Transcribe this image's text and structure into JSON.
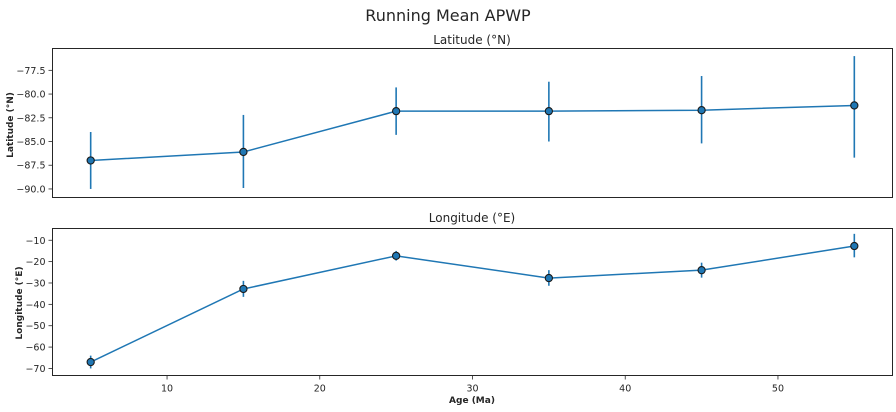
{
  "chart_data": {
    "type": "line",
    "title": "Running Mean APWP",
    "color": "#1f77b4",
    "panels": [
      {
        "title": "Latitude (°N)",
        "ylabel": "Latitude (°N)",
        "xlabel": "",
        "x": [
          5,
          15,
          25,
          35,
          45,
          55
        ],
        "y": [
          -87.0,
          -86.1,
          -81.8,
          -81.8,
          -81.7,
          -81.2
        ],
        "yerr_low": [
          -90.0,
          -89.9,
          -84.3,
          -85.0,
          -85.2,
          -86.7
        ],
        "yerr_high": [
          -84.0,
          -82.2,
          -79.3,
          -78.7,
          -78.1,
          -76.0
        ],
        "ylim": [
          -90.9,
          -75.2
        ],
        "yticks": [
          -90.0,
          -87.5,
          -85.0,
          -82.5,
          -80.0,
          -77.5
        ],
        "ytick_labels": [
          "−90.0",
          "−87.5",
          "−85.0",
          "−82.5",
          "−80.0",
          "−77.5"
        ],
        "xticks": [],
        "xtick_labels": []
      },
      {
        "title": "Longitude (°E)",
        "ylabel": "Longitude (°E)",
        "xlabel": "Age (Ma)",
        "x": [
          5,
          15,
          25,
          35,
          45,
          55
        ],
        "y": [
          -67.0,
          -32.8,
          -17.3,
          -27.7,
          -24.0,
          -12.7
        ],
        "yerr_low": [
          -70.0,
          -36.5,
          -19.5,
          -31.3,
          -27.5,
          -18.0
        ],
        "yerr_high": [
          -64.0,
          -29.0,
          -15.0,
          -24.0,
          -20.5,
          -7.0
        ],
        "ylim": [
          -73.3,
          -4.5
        ],
        "yticks": [
          -70,
          -60,
          -50,
          -40,
          -30,
          -20,
          -10
        ],
        "ytick_labels": [
          "−70",
          "−60",
          "−50",
          "−40",
          "−30",
          "−20",
          "−10"
        ],
        "xticks": [
          10,
          20,
          30,
          40,
          50
        ],
        "xtick_labels": [
          "10",
          "20",
          "30",
          "40",
          "50"
        ]
      }
    ],
    "xlim": [
      2.5,
      57.5
    ],
    "grid": false,
    "legend": "none"
  }
}
